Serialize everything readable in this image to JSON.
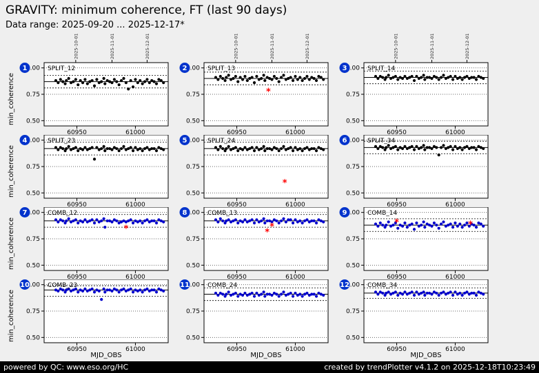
{
  "header": {
    "title": "GRAVITY: minimum coherence, FT (last 90 days)",
    "subtitle": "Data range: 2025-09-20 ... 2025-12-17*"
  },
  "footer": {
    "left": "powered by QC: www.eso.org/HC",
    "right": "created by trendPlotter v4.1.2 on 2025-12-18T10:23:49"
  },
  "colors": {
    "background": "#efefef",
    "plot_bg": "#ffffff",
    "split_color": "#000000",
    "comb_color": "#0000cc",
    "outlier": "#ff0000",
    "badge": "#0033cc",
    "footer_bg": "#000000",
    "footer_text": "#ffffff"
  },
  "chart_data": {
    "type": "scatter",
    "title": "GRAVITY: minimum coherence, FT (last 90 days)",
    "xlabel": "MJD_OBS",
    "ylabel": "min_coherence",
    "xlim": [
      60922,
      61028
    ],
    "ylim": [
      0.45,
      1.05
    ],
    "xticks": [
      60950,
      61000
    ],
    "yticks": [
      {
        "value": 1.0,
        "label": "1.00"
      },
      {
        "value": 0.75,
        "label": "0.75"
      },
      {
        "value": 0.5,
        "label": "0.50"
      }
    ],
    "date_ticks": [
      {
        "mjd": 60949,
        "label": "2025-10-01"
      },
      {
        "mjd": 60980,
        "label": "2025-11-01"
      },
      {
        "mjd": 61010,
        "label": "2025-12-01"
      }
    ],
    "x": [
      60932,
      60934,
      60936,
      60938,
      60940,
      60941,
      60943,
      60945,
      60947,
      60949,
      60951,
      60953,
      60955,
      60957,
      60959,
      60961,
      60963,
      60965,
      60967,
      60969,
      60971,
      60973,
      60974,
      60976,
      60978,
      60980,
      60982,
      60984,
      60986,
      60988,
      60990,
      60992,
      60994,
      60996,
      60998,
      61000,
      61002,
      61004,
      61006,
      61008,
      61010,
      61012,
      61014,
      61016,
      61018,
      61020,
      61022,
      61024
    ],
    "subplots": [
      {
        "n": 1,
        "label": "SPLIT_12",
        "series": "split",
        "mean": 0.87,
        "upper": 0.93,
        "lower": 0.81,
        "y": [
          0.88,
          0.86,
          0.89,
          0.87,
          0.85,
          0.88,
          0.9,
          0.86,
          0.87,
          0.89,
          0.84,
          0.88,
          0.86,
          0.89,
          0.85,
          0.87,
          0.88,
          0.83,
          0.89,
          0.86,
          0.87,
          0.9,
          0.85,
          0.88,
          0.87,
          0.86,
          0.89,
          0.87,
          0.84,
          0.88,
          0.9,
          0.86,
          0.8,
          0.88,
          0.82,
          0.89,
          0.86,
          0.88,
          0.85,
          0.87,
          0.89,
          0.86,
          0.88,
          0.87,
          0.85,
          0.89,
          0.88,
          0.86
        ],
        "outliers": []
      },
      {
        "n": 2,
        "label": "SPLIT_13",
        "series": "split",
        "mean": 0.9,
        "upper": 0.96,
        "lower": 0.84,
        "y": [
          0.91,
          0.89,
          0.92,
          0.9,
          0.88,
          0.91,
          0.93,
          0.89,
          0.9,
          0.92,
          0.87,
          0.91,
          0.89,
          0.92,
          0.88,
          0.9,
          0.91,
          0.86,
          0.92,
          0.89,
          0.9,
          0.93,
          0.88,
          0.91,
          0.9,
          0.89,
          0.92,
          0.9,
          0.87,
          0.91,
          0.93,
          0.89,
          0.9,
          0.91,
          0.88,
          0.92,
          0.89,
          0.91,
          0.88,
          0.9,
          0.92,
          0.89,
          0.91,
          0.9,
          0.88,
          0.92,
          0.91,
          0.89
        ],
        "outliers": [
          [
            60977,
            0.78
          ]
        ]
      },
      {
        "n": 3,
        "label": "SPLIT_14",
        "series": "split",
        "mean": 0.91,
        "upper": 0.97,
        "lower": 0.85,
        "y": [
          0.92,
          0.9,
          0.92,
          0.91,
          0.89,
          0.91,
          0.93,
          0.9,
          0.91,
          0.92,
          0.89,
          0.91,
          0.9,
          0.92,
          0.9,
          0.91,
          0.92,
          0.88,
          0.92,
          0.9,
          0.91,
          0.93,
          0.89,
          0.91,
          0.91,
          0.9,
          0.92,
          0.91,
          0.89,
          0.91,
          0.93,
          0.9,
          0.91,
          0.92,
          0.89,
          0.92,
          0.9,
          0.91,
          0.89,
          0.91,
          0.92,
          0.9,
          0.91,
          0.91,
          0.89,
          0.92,
          0.91,
          0.9
        ],
        "outliers": []
      },
      {
        "n": 4,
        "label": "SPLIT_23",
        "series": "split",
        "mean": 0.92,
        "upper": 0.98,
        "lower": 0.86,
        "y": [
          0.93,
          0.91,
          0.93,
          0.92,
          0.9,
          0.92,
          0.94,
          0.91,
          0.92,
          0.93,
          0.9,
          0.92,
          0.91,
          0.93,
          0.91,
          0.92,
          0.93,
          0.82,
          0.93,
          0.91,
          0.92,
          0.94,
          0.9,
          0.92,
          0.92,
          0.91,
          0.93,
          0.92,
          0.9,
          0.92,
          0.94,
          0.91,
          0.92,
          0.93,
          0.9,
          0.93,
          0.91,
          0.92,
          0.9,
          0.92,
          0.93,
          0.91,
          0.92,
          0.92,
          0.9,
          0.93,
          0.92,
          0.91
        ],
        "outliers": []
      },
      {
        "n": 5,
        "label": "SPLIT_24",
        "series": "split",
        "mean": 0.92,
        "upper": 0.98,
        "lower": 0.86,
        "y": [
          0.93,
          0.91,
          0.94,
          0.92,
          0.9,
          0.92,
          0.94,
          0.91,
          0.92,
          0.93,
          0.9,
          0.92,
          0.91,
          0.93,
          0.91,
          0.92,
          0.93,
          0.9,
          0.93,
          0.91,
          0.92,
          0.94,
          0.9,
          0.92,
          0.92,
          0.91,
          0.93,
          0.92,
          0.9,
          0.92,
          0.94,
          0.91,
          0.92,
          0.93,
          0.9,
          0.93,
          0.91,
          0.92,
          0.9,
          0.92,
          0.93,
          0.91,
          0.92,
          0.92,
          0.9,
          0.93,
          0.92,
          0.91
        ],
        "outliers": [
          [
            60991,
            0.6
          ]
        ]
      },
      {
        "n": 6,
        "label": "SPLIT_34",
        "series": "split",
        "mean": 0.93,
        "upper": 0.99,
        "lower": 0.87,
        "y": [
          0.94,
          0.92,
          0.94,
          0.93,
          0.91,
          0.93,
          0.95,
          0.92,
          0.93,
          0.94,
          0.91,
          0.93,
          0.92,
          0.94,
          0.92,
          0.93,
          0.94,
          0.91,
          0.94,
          0.92,
          0.93,
          0.95,
          0.91,
          0.93,
          0.93,
          0.92,
          0.94,
          0.93,
          0.86,
          0.93,
          0.95,
          0.92,
          0.93,
          0.94,
          0.91,
          0.94,
          0.92,
          0.93,
          0.91,
          0.93,
          0.94,
          0.92,
          0.93,
          0.93,
          0.91,
          0.94,
          0.93,
          0.92
        ],
        "outliers": []
      },
      {
        "n": 7,
        "label": "COMB_12",
        "series": "comb",
        "mean": 0.92,
        "upper": 0.98,
        "lower": 0.86,
        "y": [
          0.93,
          0.91,
          0.93,
          0.92,
          0.9,
          0.92,
          0.94,
          0.91,
          0.92,
          0.93,
          0.9,
          0.92,
          0.91,
          0.93,
          0.91,
          0.92,
          0.93,
          0.9,
          0.93,
          0.91,
          0.92,
          0.94,
          0.86,
          0.92,
          0.92,
          0.91,
          0.93,
          0.92,
          0.9,
          0.91,
          0.92,
          0.91,
          0.92,
          0.93,
          0.9,
          0.92,
          0.91,
          0.92,
          0.9,
          0.92,
          0.93,
          0.91,
          0.92,
          0.92,
          0.9,
          0.93,
          0.92,
          0.91
        ],
        "outliers": [
          [
            60992,
            0.85
          ]
        ]
      },
      {
        "n": 8,
        "label": "COMB_13",
        "series": "comb",
        "mean": 0.92,
        "upper": 0.98,
        "lower": 0.86,
        "y": [
          0.93,
          0.91,
          0.94,
          0.92,
          0.9,
          0.92,
          0.93,
          0.91,
          0.92,
          0.93,
          0.9,
          0.92,
          0.91,
          0.93,
          0.91,
          0.92,
          0.93,
          0.9,
          0.93,
          0.91,
          0.92,
          0.94,
          0.9,
          0.92,
          0.92,
          0.91,
          0.93,
          0.92,
          0.9,
          0.92,
          0.94,
          0.91,
          0.93,
          0.93,
          0.9,
          0.93,
          0.91,
          0.92,
          0.9,
          0.92,
          0.93,
          0.91,
          0.92,
          0.92,
          0.9,
          0.93,
          0.92,
          0.91
        ],
        "outliers": [
          [
            60976,
            0.82
          ],
          [
            60980,
            0.87
          ]
        ]
      },
      {
        "n": 9,
        "label": "COMB_14",
        "series": "comb",
        "mean": 0.88,
        "upper": 0.94,
        "lower": 0.82,
        "y": [
          0.89,
          0.87,
          0.9,
          0.88,
          0.86,
          0.88,
          0.91,
          0.87,
          0.88,
          0.9,
          0.85,
          0.88,
          0.87,
          0.9,
          0.86,
          0.88,
          0.89,
          0.84,
          0.9,
          0.87,
          0.88,
          0.91,
          0.86,
          0.89,
          0.88,
          0.87,
          0.9,
          0.88,
          0.85,
          0.89,
          0.91,
          0.87,
          0.88,
          0.89,
          0.86,
          0.9,
          0.87,
          0.89,
          0.86,
          0.88,
          0.9,
          0.87,
          0.89,
          0.88,
          0.86,
          0.9,
          0.89,
          0.87
        ],
        "outliers": [
          [
            60950,
            0.91
          ],
          [
            61013,
            0.89
          ]
        ]
      },
      {
        "n": 10,
        "label": "COMB_23",
        "series": "comb",
        "mean": 0.95,
        "upper": 0.99,
        "lower": 0.89,
        "y": [
          0.95,
          0.94,
          0.96,
          0.95,
          0.93,
          0.95,
          0.96,
          0.94,
          0.95,
          0.96,
          0.93,
          0.95,
          0.94,
          0.96,
          0.94,
          0.95,
          0.96,
          0.93,
          0.95,
          0.94,
          0.86,
          0.96,
          0.93,
          0.95,
          0.95,
          0.94,
          0.96,
          0.95,
          0.93,
          0.95,
          0.96,
          0.94,
          0.95,
          0.96,
          0.93,
          0.95,
          0.94,
          0.95,
          0.93,
          0.95,
          0.96,
          0.94,
          0.95,
          0.95,
          0.93,
          0.96,
          0.95,
          0.94
        ],
        "outliers": []
      },
      {
        "n": 11,
        "label": "COMB_24",
        "series": "comb",
        "mean": 0.91,
        "upper": 0.97,
        "lower": 0.85,
        "y": [
          0.92,
          0.9,
          0.92,
          0.91,
          0.89,
          0.91,
          0.93,
          0.9,
          0.91,
          0.92,
          0.89,
          0.91,
          0.9,
          0.92,
          0.9,
          0.91,
          0.92,
          0.89,
          0.92,
          0.9,
          0.91,
          0.93,
          0.89,
          0.91,
          0.91,
          0.9,
          0.92,
          0.91,
          0.89,
          0.91,
          0.93,
          0.9,
          0.91,
          0.92,
          0.89,
          0.92,
          0.9,
          0.91,
          0.89,
          0.91,
          0.92,
          0.9,
          0.91,
          0.91,
          0.89,
          0.92,
          0.91,
          0.9
        ],
        "outliers": []
      },
      {
        "n": 12,
        "label": "COMB_34",
        "series": "comb",
        "mean": 0.92,
        "upper": 0.97,
        "lower": 0.87,
        "y": [
          0.93,
          0.91,
          0.93,
          0.92,
          0.9,
          0.92,
          0.93,
          0.91,
          0.92,
          0.93,
          0.9,
          0.92,
          0.91,
          0.93,
          0.91,
          0.92,
          0.93,
          0.9,
          0.93,
          0.91,
          0.92,
          0.93,
          0.9,
          0.92,
          0.92,
          0.91,
          0.93,
          0.92,
          0.9,
          0.92,
          0.93,
          0.91,
          0.92,
          0.93,
          0.9,
          0.93,
          0.91,
          0.92,
          0.9,
          0.92,
          0.93,
          0.91,
          0.92,
          0.92,
          0.9,
          0.93,
          0.92,
          0.91
        ],
        "outliers": []
      }
    ]
  }
}
